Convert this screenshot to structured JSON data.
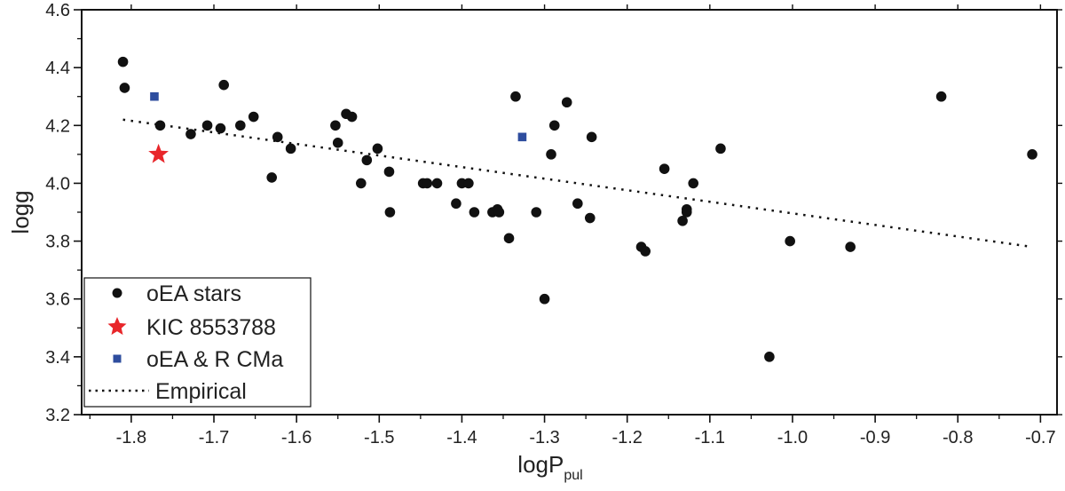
{
  "chart_data": {
    "type": "scatter",
    "xlabel": "logP",
    "xlabel_sub": "pul",
    "ylabel": "logg",
    "xlim": [
      -1.86,
      -0.68
    ],
    "ylim": [
      3.2,
      4.6
    ],
    "xticks": [
      -1.8,
      -1.7,
      -1.6,
      -1.5,
      -1.4,
      -1.3,
      -1.2,
      -1.1,
      -1.0,
      -0.9,
      -0.8,
      -0.7
    ],
    "xtick_labels": [
      "-1.8",
      "-1.7",
      "-1.6",
      "-1.5",
      "-1.4",
      "-1.3",
      "-1.2",
      "-1.1",
      "-1.0",
      "-0.9",
      "-0.8",
      "-0.7"
    ],
    "yticks": [
      3.2,
      3.4,
      3.6,
      3.8,
      4.0,
      4.2,
      4.4,
      4.6
    ],
    "ytick_labels": [
      "3.2",
      "3.4",
      "3.6",
      "3.8",
      "4.0",
      "4.2",
      "4.4",
      "4.6"
    ],
    "legend_position": "lower-left",
    "series": [
      {
        "name": "oEA stars",
        "marker": "circle",
        "color": "#111111",
        "points": [
          [
            -1.81,
            4.42
          ],
          [
            -1.808,
            4.33
          ],
          [
            -1.765,
            4.2
          ],
          [
            -1.728,
            4.17
          ],
          [
            -1.708,
            4.2
          ],
          [
            -1.692,
            4.19
          ],
          [
            -1.688,
            4.34
          ],
          [
            -1.668,
            4.2
          ],
          [
            -1.652,
            4.23
          ],
          [
            -1.63,
            4.02
          ],
          [
            -1.623,
            4.16
          ],
          [
            -1.607,
            4.12
          ],
          [
            -1.553,
            4.2
          ],
          [
            -1.55,
            4.14
          ],
          [
            -1.54,
            4.24
          ],
          [
            -1.533,
            4.23
          ],
          [
            -1.522,
            4.0
          ],
          [
            -1.515,
            4.08
          ],
          [
            -1.502,
            4.12
          ],
          [
            -1.488,
            4.04
          ],
          [
            -1.487,
            3.9
          ],
          [
            -1.447,
            4.0
          ],
          [
            -1.442,
            4.0
          ],
          [
            -1.43,
            4.0
          ],
          [
            -1.407,
            3.93
          ],
          [
            -1.4,
            4.0
          ],
          [
            -1.392,
            4.0
          ],
          [
            -1.385,
            3.9
          ],
          [
            -1.363,
            3.9
          ],
          [
            -1.357,
            3.91
          ],
          [
            -1.355,
            3.9
          ],
          [
            -1.343,
            3.81
          ],
          [
            -1.335,
            4.3
          ],
          [
            -1.31,
            3.9
          ],
          [
            -1.3,
            3.6
          ],
          [
            -1.292,
            4.1
          ],
          [
            -1.288,
            4.2
          ],
          [
            -1.273,
            4.28
          ],
          [
            -1.26,
            3.93
          ],
          [
            -1.245,
            3.88
          ],
          [
            -1.243,
            4.16
          ],
          [
            -1.183,
            3.78
          ],
          [
            -1.178,
            3.765
          ],
          [
            -1.155,
            4.05
          ],
          [
            -1.133,
            3.87
          ],
          [
            -1.128,
            3.91
          ],
          [
            -1.128,
            3.9
          ],
          [
            -1.12,
            4.0
          ],
          [
            -1.087,
            4.12
          ],
          [
            -1.028,
            3.4
          ],
          [
            -1.003,
            3.8
          ],
          [
            -0.93,
            3.78
          ],
          [
            -0.82,
            4.3
          ],
          [
            -0.71,
            4.1
          ]
        ]
      },
      {
        "name": "KIC 8553788",
        "marker": "star",
        "color": "#e8262a",
        "points": [
          [
            -1.767,
            4.1
          ]
        ]
      },
      {
        "name": "oEA & R CMa",
        "marker": "square",
        "color": "#2e4d9e",
        "points": [
          [
            -1.772,
            4.3
          ],
          [
            -1.327,
            4.16
          ]
        ]
      },
      {
        "name": "Empirical",
        "marker": "dotted-line",
        "color": "#111111",
        "line": [
          [
            -1.81,
            4.22
          ],
          [
            -0.71,
            3.78
          ]
        ]
      }
    ]
  }
}
